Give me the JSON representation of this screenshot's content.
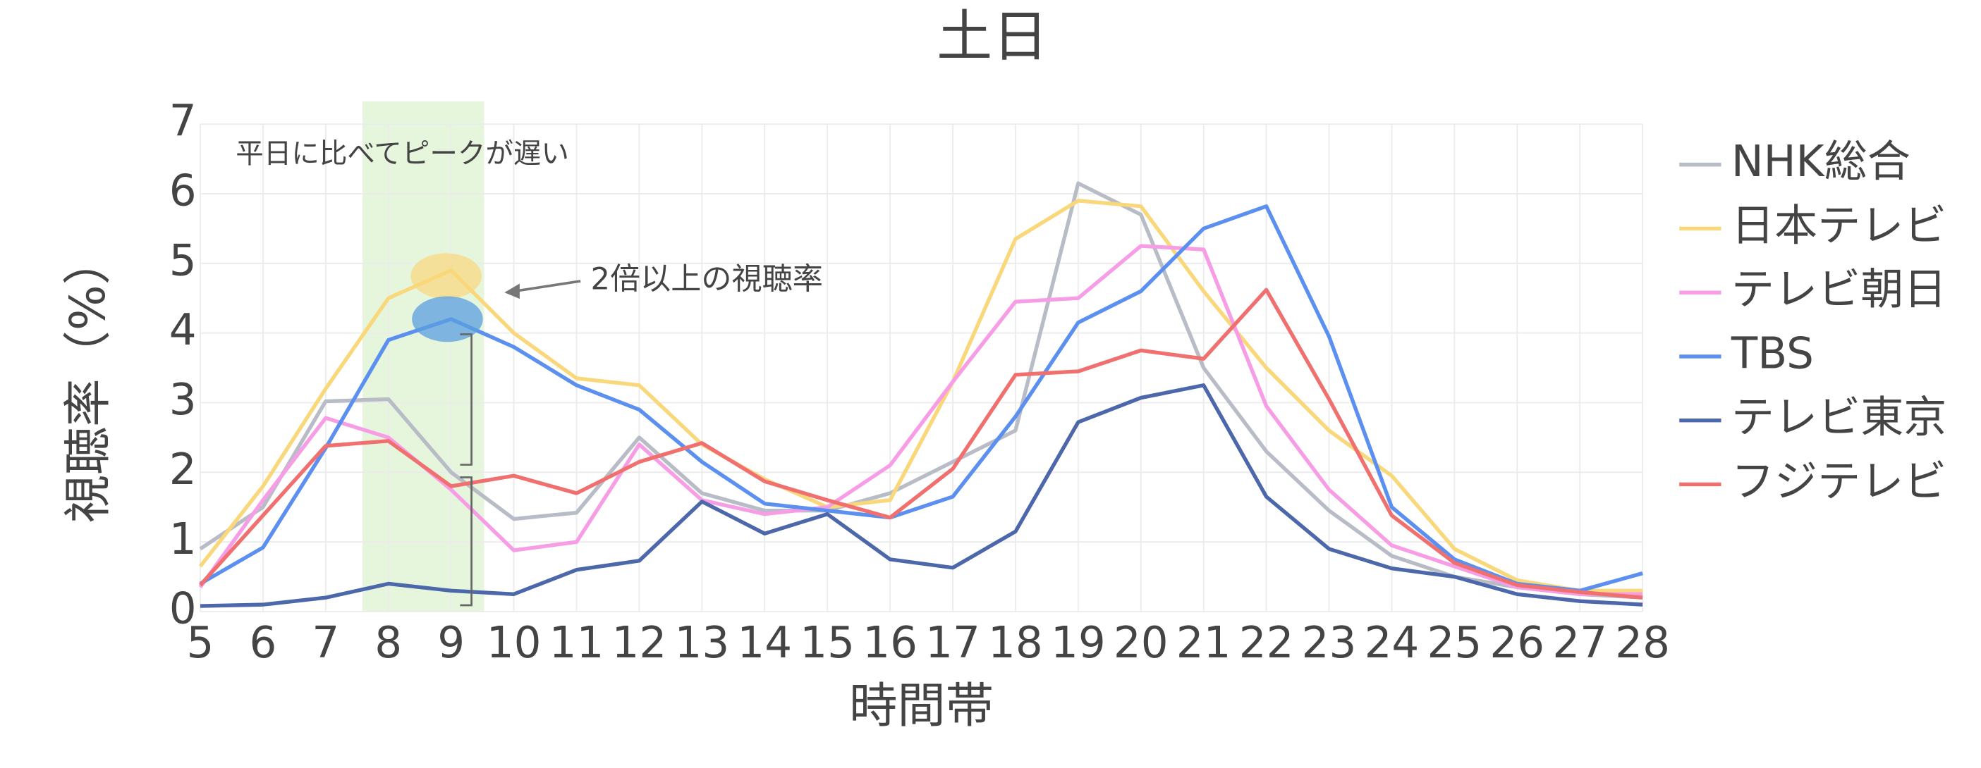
{
  "chart_data": {
    "type": "line",
    "title": "土日",
    "x_label": "時間帯",
    "y_label": "視聴率（%）",
    "x": [
      5,
      6,
      7,
      8,
      9,
      10,
      11,
      12,
      13,
      14,
      15,
      16,
      17,
      18,
      19,
      20,
      21,
      22,
      23,
      24,
      25,
      26,
      27,
      28
    ],
    "xlim": [
      5,
      28
    ],
    "xticks": [
      5,
      6,
      7,
      8,
      9,
      10,
      11,
      12,
      13,
      14,
      15,
      16,
      17,
      18,
      19,
      20,
      21,
      22,
      23,
      24,
      25,
      26,
      27,
      28
    ],
    "ylim": [
      0,
      7
    ],
    "yticks": [
      0,
      1,
      2,
      3,
      4,
      5,
      6,
      7
    ],
    "grid": true,
    "legend": "right",
    "annotations": [
      "平日に比べてピークが遅い",
      "2倍以上の視聴率"
    ],
    "series": [
      {
        "name": "NHK総合",
        "color": "#b8bcc6",
        "values": [
          0.9,
          1.5,
          3.02,
          3.05,
          2.0,
          1.33,
          1.42,
          2.5,
          1.7,
          1.45,
          1.45,
          1.7,
          2.15,
          2.6,
          6.15,
          5.7,
          3.5,
          2.3,
          1.45,
          0.8,
          0.5,
          0.35,
          0.25,
          0.2
        ]
      },
      {
        "name": "日本テレビ",
        "color": "#f9d77b",
        "values": [
          0.65,
          1.8,
          3.2,
          4.5,
          4.9,
          4.0,
          3.35,
          3.25,
          2.4,
          1.9,
          1.5,
          1.6,
          3.3,
          5.35,
          5.9,
          5.82,
          4.6,
          3.5,
          2.6,
          1.95,
          0.9,
          0.45,
          0.3,
          0.3
        ]
      },
      {
        "name": "テレビ朝日",
        "color": "#f79de6",
        "values": [
          0.35,
          1.6,
          2.78,
          2.5,
          1.75,
          0.88,
          1.0,
          2.4,
          1.6,
          1.4,
          1.5,
          2.1,
          3.3,
          4.45,
          4.5,
          5.25,
          5.2,
          2.95,
          1.75,
          0.95,
          0.65,
          0.35,
          0.25,
          0.25
        ]
      },
      {
        "name": "TBS",
        "color": "#5b8ff0",
        "values": [
          0.4,
          0.92,
          2.35,
          3.9,
          4.2,
          3.8,
          3.25,
          2.9,
          2.15,
          1.55,
          1.45,
          1.35,
          1.65,
          2.8,
          4.15,
          4.6,
          5.5,
          5.82,
          3.95,
          1.5,
          0.75,
          0.4,
          0.3,
          0.55
        ]
      },
      {
        "name": "テレビ東京",
        "color": "#4d68aa",
        "values": [
          0.08,
          0.1,
          0.2,
          0.4,
          0.3,
          0.25,
          0.6,
          0.73,
          1.58,
          1.12,
          1.4,
          0.75,
          0.63,
          1.15,
          2.72,
          3.07,
          3.25,
          1.65,
          0.9,
          0.62,
          0.5,
          0.25,
          0.15,
          0.1
        ]
      },
      {
        "name": "フジテレビ",
        "color": "#f07070",
        "values": [
          0.38,
          1.38,
          2.38,
          2.45,
          1.8,
          1.95,
          1.7,
          2.15,
          2.42,
          1.87,
          1.6,
          1.35,
          2.05,
          3.4,
          3.45,
          3.75,
          3.63,
          4.62,
          3.05,
          1.38,
          0.7,
          0.38,
          0.28,
          0.2
        ]
      }
    ]
  }
}
